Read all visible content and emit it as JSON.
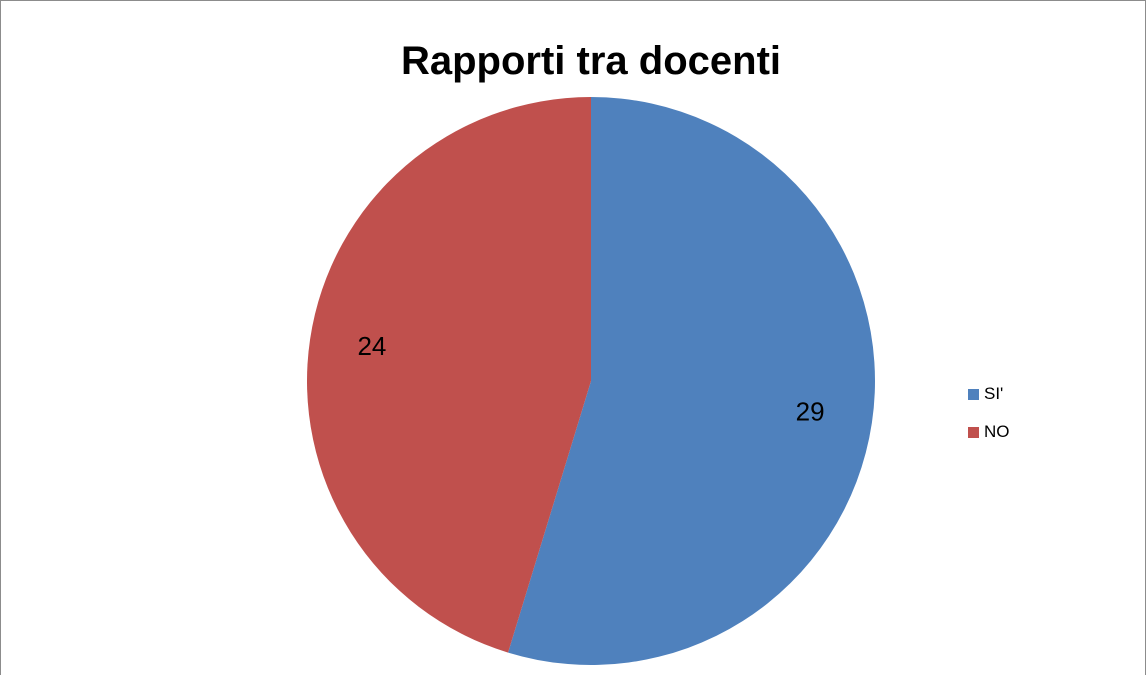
{
  "chart_data": {
    "type": "pie",
    "title": "Rapporti tra docenti",
    "categories": [
      "SI'",
      "NO"
    ],
    "values": [
      29,
      24
    ],
    "colors": [
      "#4f81bd",
      "#c0504d"
    ],
    "data_labels": [
      "29",
      "24"
    ],
    "legend_position": "right"
  }
}
